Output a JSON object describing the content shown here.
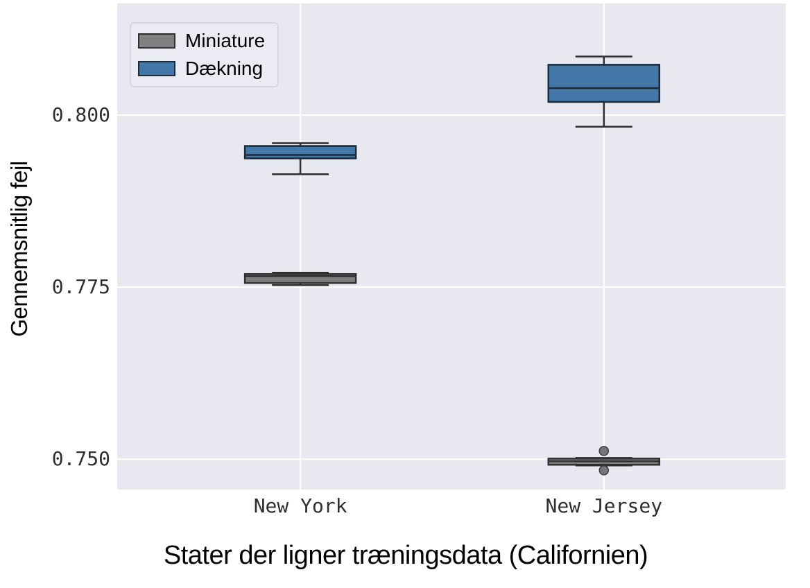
{
  "figure": {
    "background": "#ffffff",
    "plot_background": "#e8e8f0",
    "grid_color": "#ffffff",
    "tick_color": "#2f2f2f"
  },
  "chart_data": {
    "type": "boxplot",
    "title": "",
    "xlabel": "Stater der ligner træningsdata (Californien)",
    "ylabel": "Gennemsnitlig fejl",
    "categories": [
      "New York",
      "New Jersey"
    ],
    "x_positions": [
      0.274,
      0.728
    ],
    "ylim": [
      0.7456,
      0.8162
    ],
    "yticks": [
      {
        "value": 0.8,
        "label": "0.800"
      },
      {
        "value": 0.775,
        "label": "0.775"
      },
      {
        "value": 0.75,
        "label": "0.750"
      }
    ],
    "grid": true,
    "legend_position": "upper-left",
    "legend": [
      {
        "label": "Miniature",
        "fill": "#7f7f7f",
        "edge": "#303030"
      },
      {
        "label": "Dækning",
        "fill": "#4377a8",
        "edge": "#1b2a38"
      }
    ],
    "series": [
      {
        "name": "Miniature",
        "fill": "#7f7f7f",
        "edge": "#303030",
        "boxes": [
          {
            "category": "New York",
            "whislo": 0.7753,
            "q1": 0.7756,
            "med": 0.7766,
            "q3": 0.7769,
            "whishi": 0.7771,
            "fliers": []
          },
          {
            "category": "New Jersey",
            "whislo": 0.7491,
            "q1": 0.7492,
            "med": 0.7497,
            "q3": 0.7501,
            "whishi": 0.7502,
            "fliers": [
              0.7512,
              0.7484
            ]
          }
        ]
      },
      {
        "name": "Dækning",
        "fill": "#4377a8",
        "edge": "#1b2a38",
        "boxes": [
          {
            "category": "New York",
            "whislo": 0.7914,
            "q1": 0.7937,
            "med": 0.7942,
            "q3": 0.7955,
            "whishi": 0.7959,
            "fliers": []
          },
          {
            "category": "New Jersey",
            "whislo": 0.7983,
            "q1": 0.8019,
            "med": 0.8039,
            "q3": 0.8073,
            "whishi": 0.8085,
            "fliers": []
          }
        ]
      }
    ],
    "whisker_color": "#2e2e2e",
    "flier_fill": "#75757d",
    "flier_edge": "#3a3a3a"
  }
}
